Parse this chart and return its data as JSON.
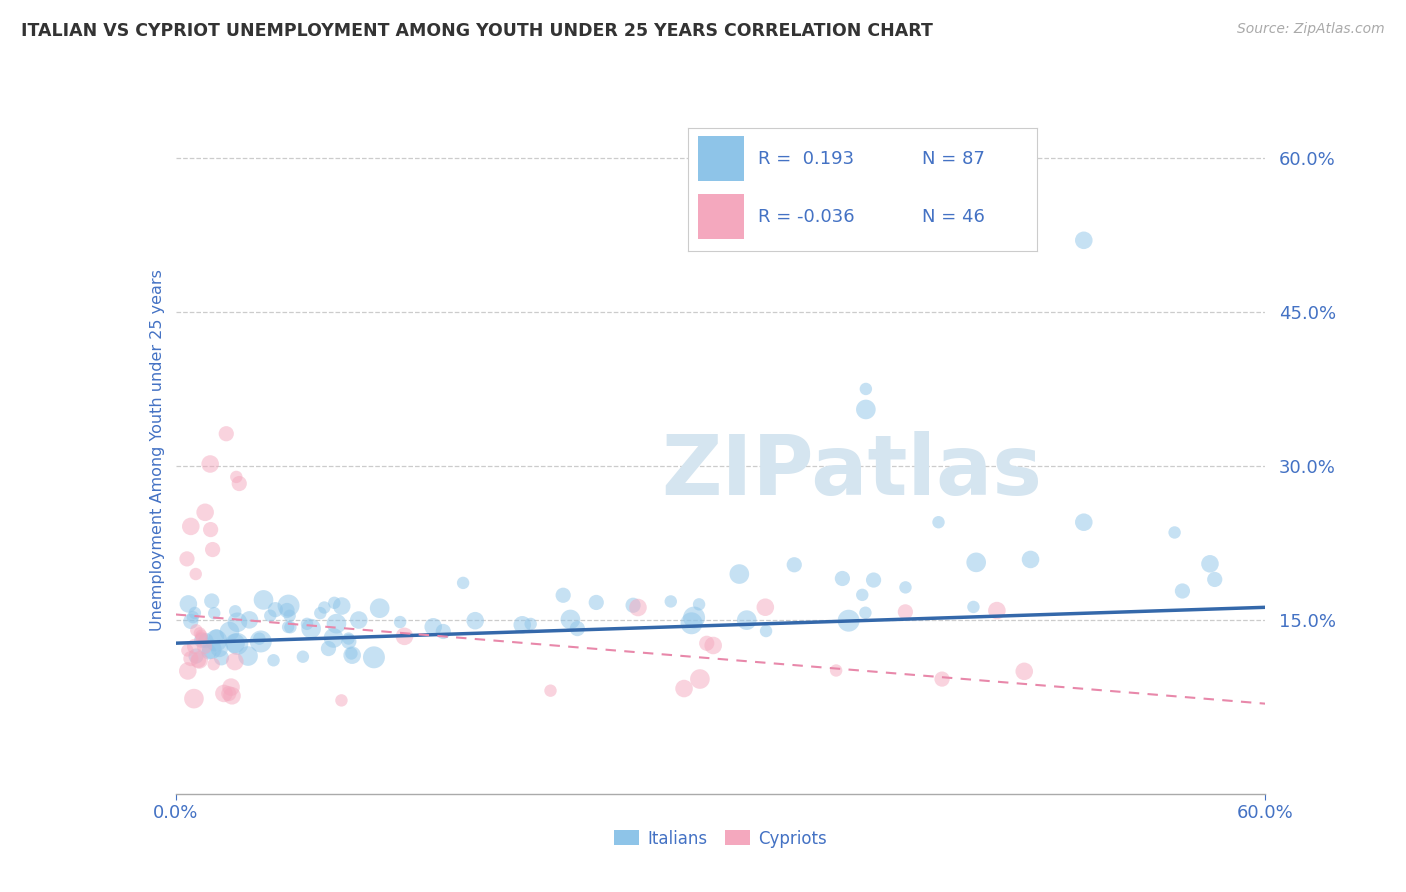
{
  "title": "ITALIAN VS CYPRIOT UNEMPLOYMENT AMONG YOUTH UNDER 25 YEARS CORRELATION CHART",
  "source": "Source: ZipAtlas.com",
  "ylabel_label": "Unemployment Among Youth under 25 years",
  "ytick_labels": [
    "15.0%",
    "30.0%",
    "45.0%",
    "60.0%"
  ],
  "ytick_values": [
    0.15,
    0.3,
    0.45,
    0.6
  ],
  "xlim": [
    0.0,
    0.6
  ],
  "ylim": [
    -0.02,
    0.65
  ],
  "legend_R_italian": " 0.193",
  "legend_N_italian": "87",
  "legend_R_cypriot": "-0.036",
  "legend_N_cypriot": "46",
  "italian_color": "#8ec4e8",
  "cypriot_color": "#f4a8be",
  "trendline_italian_color": "#3468aa",
  "trendline_cypriot_color": "#e888aa",
  "watermark_text": "ZIPatlas",
  "watermark_color": "#d5e5f0",
  "title_color": "#333333",
  "axis_label_color": "#4472c4",
  "tick_label_color": "#4472c4",
  "background_color": "#ffffff",
  "grid_color": "#cccccc",
  "legend_text_color_blue": "#4472c4",
  "legend_text_color_pink": "#c0508a"
}
